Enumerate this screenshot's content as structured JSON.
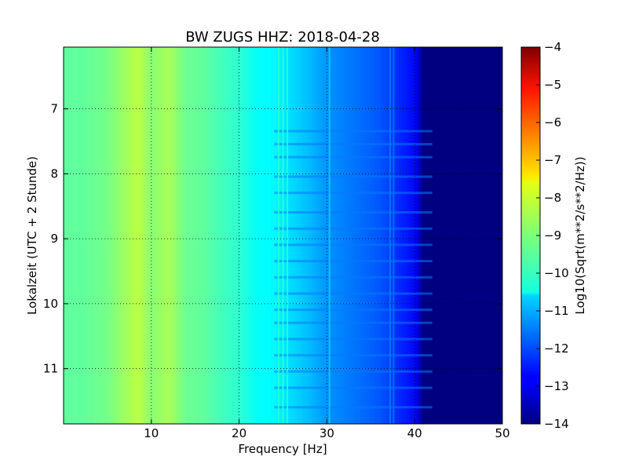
{
  "chart_data": {
    "type": "heatmap",
    "title": "BW ZUGS HHZ: 2018-04-28",
    "xlabel": "Frequency [Hz]",
    "ylabel": "Lokalzeit (UTC + 2 Stunde)",
    "xlim": [
      0,
      50
    ],
    "ylim": [
      11.85,
      6.05
    ],
    "y_inverted": true,
    "xticks": [
      10,
      20,
      30,
      40,
      50
    ],
    "yticks": [
      7,
      8,
      9,
      10,
      11
    ],
    "grid": true,
    "colormap": "jet",
    "colorbar": {
      "label": "Log10(Sqrt(m**2/s**2/Hz))",
      "range": [
        -14,
        -4
      ],
      "ticks": [
        -4,
        -5,
        -6,
        -7,
        -8,
        -9,
        -10,
        -11,
        -12,
        -13,
        -14
      ]
    },
    "spectrum_profile": {
      "frequency_hz": [
        0,
        2,
        5,
        7,
        8.5,
        10,
        12,
        14,
        16,
        18,
        20,
        22,
        24,
        26,
        28,
        30,
        32,
        34,
        36,
        37.5,
        38.5,
        40,
        41,
        42,
        45,
        50
      ],
      "log10_amplitude": [
        -9.3,
        -9.3,
        -9.1,
        -8.7,
        -8.4,
        -8.9,
        -8.6,
        -9.2,
        -9.3,
        -9.6,
        -9.8,
        -10.2,
        -10.3,
        -10.6,
        -10.9,
        -11.3,
        -11.5,
        -11.7,
        -11.9,
        -12.2,
        -12.4,
        -12.7,
        -14,
        -14,
        -14,
        -14
      ]
    },
    "narrowband_lines_hz": [
      24.5,
      25,
      25.5,
      30.3,
      37.2,
      37.6
    ],
    "broadband_event_times": [
      7.35,
      7.55,
      7.75,
      8.05,
      8.3,
      8.6,
      8.85,
      9.1,
      9.35,
      9.6,
      9.85,
      10.1,
      10.3,
      10.55,
      10.8,
      11.05,
      11.3,
      11.6
    ]
  }
}
